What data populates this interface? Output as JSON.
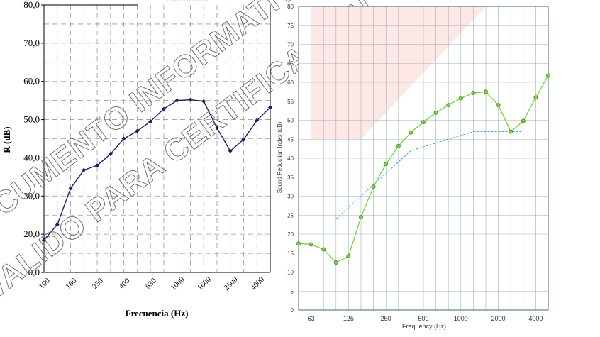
{
  "chart_data": [
    {
      "type": "line",
      "title": "",
      "xlabel": "Frecuencia (Hz)",
      "ylabel": "R (dB)",
      "ylim": [
        10,
        80
      ],
      "yticks": [
        "10,0",
        "20,0",
        "30,0",
        "40,0",
        "50,0",
        "60,0",
        "70,0",
        "80,0"
      ],
      "xtick_labels": [
        "100",
        "160",
        "250",
        "400",
        "630",
        "1000",
        "1600",
        "2500",
        "4000"
      ],
      "x": [
        100,
        125,
        160,
        200,
        250,
        315,
        400,
        500,
        630,
        800,
        1000,
        1250,
        1600,
        2000,
        2500,
        3150,
        4000,
        5000
      ],
      "series": [
        {
          "values": [
            18.5,
            22.5,
            32,
            36.8,
            38,
            41,
            45,
            47,
            49.5,
            52.8,
            55,
            55.2,
            54.8,
            47.8,
            41.8,
            44.8,
            49.8,
            53.2
          ],
          "color": "#1a1a6e"
        }
      ],
      "grid": true,
      "watermark": "DOCUMENTO INFORMATIVO · NO VALIDO PARA CERTIFICACION"
    },
    {
      "type": "line",
      "title": "",
      "xlabel": "Frequency (Hz)",
      "ylabel": "Sound Reduction Index (dB)",
      "ylim": [
        0,
        80
      ],
      "yticks": [
        "0",
        "5",
        "10",
        "15",
        "20",
        "25",
        "30",
        "35",
        "40",
        "45",
        "50",
        "55",
        "60",
        "65",
        "70",
        "75",
        "80"
      ],
      "xtick_labels": [
        "63",
        "125",
        "250",
        "500",
        "1000",
        "2000",
        "4000"
      ],
      "x": [
        50,
        63,
        80,
        100,
        125,
        160,
        200,
        250,
        315,
        400,
        500,
        630,
        800,
        1000,
        1250,
        1600,
        2000,
        2500,
        3150,
        4000,
        5000
      ],
      "series": [
        {
          "values": [
            17.5,
            17.3,
            16,
            12.5,
            14.2,
            24.5,
            32.5,
            38.5,
            43.2,
            46.8,
            49.5,
            52,
            54,
            55.8,
            57.2,
            57.5,
            54,
            47,
            49.8,
            56,
            61.8
          ],
          "color": "#66dd33"
        },
        {
          "x": [
            100,
            160,
            200,
            250,
            315,
            400,
            500,
            630,
            800,
            1000,
            1250,
            1600,
            2000,
            2500,
            3150
          ],
          "values": [
            24,
            30,
            33,
            36,
            39,
            42,
            43,
            44,
            45,
            46,
            47,
            47,
            47,
            47,
            47
          ],
          "color": "#33aaee"
        }
      ],
      "grid": true,
      "shaded_region": {
        "color": "#fde4e4"
      }
    }
  ]
}
